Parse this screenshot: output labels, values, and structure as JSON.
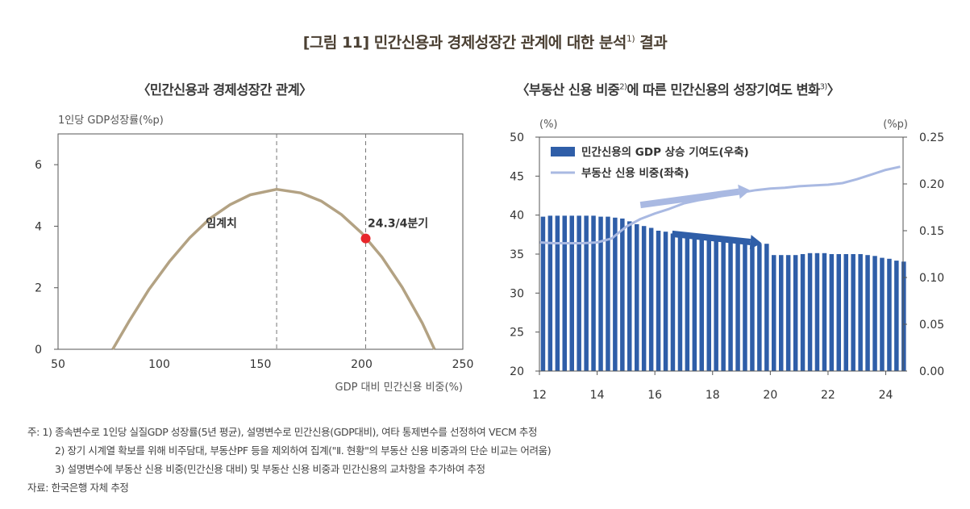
{
  "figure_title": "[그림 11] 민간신용과 경제성장간 관계에 대한 분석",
  "figure_title_sup": "1)",
  "figure_title_suffix": " 결과",
  "chart_data": [
    {
      "type": "line",
      "title": "〈민간신용과 경제성장간 관계〉",
      "ylabel": "1인당 GDP성장률(%p)",
      "xlabel": "GDP 대비 민간신용 비중(%)",
      "xlim": [
        50,
        250
      ],
      "ylim": [
        0,
        7
      ],
      "xticks": [
        50,
        100,
        150,
        200,
        250
      ],
      "yticks": [
        0,
        2,
        4,
        6
      ],
      "series": [
        {
          "name": "curve",
          "color": "#b3a283",
          "x": [
            77,
            85,
            95,
            105,
            115,
            125,
            135,
            145,
            158,
            170,
            180,
            190,
            200,
            210,
            220,
            230,
            236
          ],
          "y": [
            0,
            0.9,
            1.95,
            2.85,
            3.62,
            4.25,
            4.7,
            5.02,
            5.2,
            5.08,
            4.82,
            4.38,
            3.78,
            3.0,
            2.02,
            0.85,
            0
          ]
        }
      ],
      "vlines": [
        158,
        202
      ],
      "point": {
        "x": 202,
        "y": 3.6,
        "color": "#e8262a"
      },
      "annotations": [
        {
          "text": "임계치",
          "x": 123,
          "y": 4.1
        },
        {
          "text": "24.3/4분기",
          "x": 203,
          "y": 4.1
        }
      ]
    },
    {
      "type": "bar+line",
      "title_pre": "〈부동산 신용 비중",
      "title_sup1": "2)",
      "title_mid": "에 따른 민간신용의 성장기여도 변화",
      "title_sup2": "3)",
      "title_post": "〉",
      "left_unit": "(%)",
      "right_unit": "(%p)",
      "x_ticks": [
        "12",
        "14",
        "16",
        "18",
        "20",
        "22",
        "24"
      ],
      "left_ticks": [
        "20",
        "25",
        "30",
        "35",
        "40",
        "45",
        "50"
      ],
      "right_ticks": [
        "0.00",
        "0.05",
        "0.10",
        "0.15",
        "0.20",
        "0.25"
      ],
      "xlim": [
        12,
        24.6
      ],
      "left_ylim": [
        20,
        50
      ],
      "right_ylim": [
        0,
        0.25
      ],
      "legend": [
        {
          "label": "민간신용의 GDP 상승 기여도(우축)",
          "kind": "bar",
          "color": "#2f5ea8"
        },
        {
          "label": "부동산 신용 비중(좌축)",
          "kind": "line",
          "color": "#a9b9e2"
        }
      ],
      "bars": {
        "name": "민간신용의 GDP 상승 기여도(우축)",
        "color": "#2f5ea8",
        "x": [
          12.0,
          12.25,
          12.5,
          12.75,
          13.0,
          13.25,
          13.5,
          13.75,
          14.0,
          14.25,
          14.5,
          14.75,
          15.0,
          15.25,
          15.5,
          15.75,
          16.0,
          16.25,
          16.5,
          16.75,
          17.0,
          17.25,
          17.5,
          17.75,
          18.0,
          18.25,
          18.5,
          18.75,
          19.0,
          19.25,
          19.5,
          19.75,
          20.0,
          20.25,
          20.5,
          20.75,
          21.0,
          21.25,
          21.5,
          21.75,
          22.0,
          22.25,
          22.5,
          22.75,
          23.0,
          23.25,
          23.5,
          23.75,
          24.0,
          24.25,
          24.5
        ],
        "values": [
          0.165,
          0.166,
          0.166,
          0.166,
          0.166,
          0.166,
          0.166,
          0.166,
          0.165,
          0.165,
          0.164,
          0.163,
          0.16,
          0.157,
          0.155,
          0.153,
          0.15,
          0.149,
          0.147,
          0.146,
          0.144,
          0.143,
          0.142,
          0.141,
          0.14,
          0.139,
          0.139,
          0.138,
          0.138,
          0.137,
          0.136,
          0.136,
          0.124,
          0.124,
          0.124,
          0.124,
          0.125,
          0.126,
          0.126,
          0.126,
          0.125,
          0.125,
          0.125,
          0.125,
          0.125,
          0.124,
          0.123,
          0.121,
          0.12,
          0.118,
          0.117
        ]
      },
      "line": {
        "name": "부동산 신용 비중(좌축)",
        "color": "#a9b9e2",
        "x": [
          12.0,
          12.5,
          13.0,
          13.5,
          14.0,
          14.5,
          15.0,
          15.5,
          16.0,
          16.5,
          17.0,
          17.5,
          18.0,
          18.5,
          19.0,
          19.5,
          20.0,
          20.5,
          21.0,
          21.5,
          22.0,
          22.5,
          23.0,
          23.5,
          24.0,
          24.5
        ],
        "values": [
          36.5,
          36.4,
          36.4,
          36.4,
          36.5,
          37.0,
          38.5,
          39.5,
          40.2,
          40.8,
          41.5,
          41.9,
          42.2,
          42.6,
          42.9,
          43.2,
          43.4,
          43.5,
          43.7,
          43.8,
          43.9,
          44.1,
          44.6,
          45.2,
          45.8,
          46.2
        ]
      },
      "arrows": [
        {
          "from": [
            15.5,
            41.3
          ],
          "to": [
            19.3,
            43.2
          ],
          "color": "#a9b9e2"
        },
        {
          "from": [
            16.6,
            37.6
          ],
          "to": [
            19.7,
            36.4
          ],
          "color": "#2f5ea8"
        }
      ]
    }
  ],
  "notes": [
    "주: 1) 종속변수로 1인당 실질GDP 성장률(5년 평균), 설명변수로 민간신용(GDP대비), 여타 통제변수를 선정하여 VECM 추정",
    "2) 장기 시계열 확보를 위해 비주담대, 부동산PF 등을 제외하여 집계(\"Ⅱ. 현황\"의 부동산 신용 비중과의 단순 비교는 어려움)",
    "3) 설명변수에 부동산 신용 비중(민간신용 대비) 및 부동산 신용 비중과 민간신용의 교차항을 추가하여 추정",
    "자료: 한국은행 자체 추정"
  ]
}
